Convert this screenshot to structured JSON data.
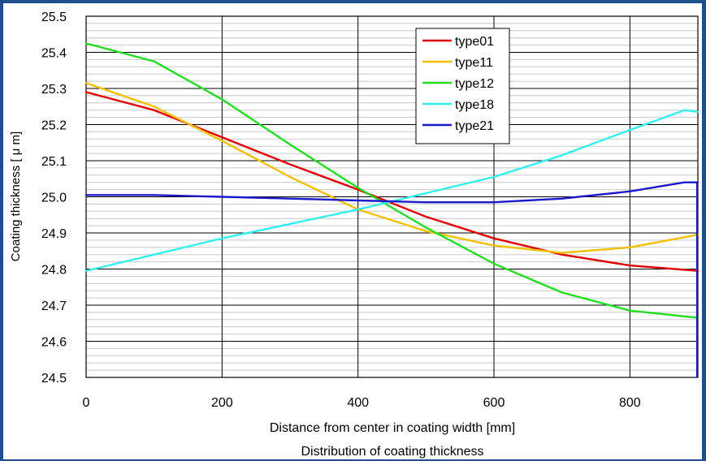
{
  "chart_data": {
    "type": "line",
    "title": "",
    "xlabel": "Distance from center in coating width [mm]",
    "ylabel": "Coating thickness [ μ m]",
    "caption": "Distribution of coating thickness",
    "xlim": [
      0,
      900
    ],
    "ylim": [
      24.5,
      25.5
    ],
    "x_ticks": [
      "0",
      "200",
      "400",
      "600",
      "800"
    ],
    "y_ticks": [
      "24.5",
      "24.6",
      "24.7",
      "24.8",
      "24.9",
      "25.0",
      "25.1",
      "25.2",
      "25.3",
      "25.4",
      "25.5"
    ],
    "grid": true,
    "legend_position": "top-right",
    "series": [
      {
        "name": "type01",
        "color": "#e00000",
        "x": [
          0,
          100,
          200,
          300,
          400,
          500,
          600,
          700,
          800,
          900
        ],
        "y": [
          25.29,
          25.24,
          25.165,
          25.09,
          25.02,
          24.945,
          24.885,
          24.84,
          24.81,
          24.795
        ]
      },
      {
        "name": "type11",
        "color": "#f0c000",
        "x": [
          0,
          100,
          200,
          300,
          400,
          500,
          600,
          700,
          800,
          900
        ],
        "y": [
          25.315,
          25.25,
          25.155,
          25.055,
          24.965,
          24.905,
          24.865,
          24.845,
          24.86,
          24.895
        ]
      },
      {
        "name": "type12",
        "color": "#22dd22",
        "x": [
          0,
          100,
          200,
          300,
          400,
          500,
          600,
          700,
          800,
          900
        ],
        "y": [
          25.425,
          25.375,
          25.27,
          25.145,
          25.025,
          24.915,
          24.815,
          24.735,
          24.685,
          24.665
        ]
      },
      {
        "name": "type18",
        "color": "#33eeee",
        "x": [
          0,
          100,
          200,
          300,
          400,
          500,
          600,
          700,
          800,
          880,
          900
        ],
        "y": [
          24.795,
          24.84,
          24.885,
          24.925,
          24.965,
          25.01,
          25.055,
          25.115,
          25.185,
          25.24,
          25.235
        ]
      },
      {
        "name": "type21",
        "color": "#1a1acc",
        "x": [
          0,
          100,
          200,
          300,
          400,
          500,
          600,
          700,
          800,
          880,
          900
        ],
        "y": [
          25.005,
          25.005,
          25.0,
          24.995,
          24.99,
          24.985,
          24.985,
          24.995,
          25.015,
          25.04,
          25.04
        ]
      }
    ]
  }
}
